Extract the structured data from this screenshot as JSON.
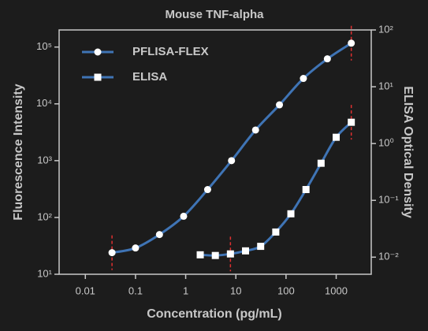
{
  "chart_data": {
    "type": "line",
    "title": "Mouse TNF-alpha",
    "x_label": "Concentration (pg/mL)",
    "y_label": "Fluorescence Intensity",
    "y2_label": "ELISA Optical Density",
    "log_x": true,
    "log_y": true,
    "log_y2": true,
    "xlim": [
      0.003,
      5000
    ],
    "xticks": [
      0.01,
      0.1,
      1,
      10,
      100,
      1000
    ],
    "ylim": [
      10,
      200000
    ],
    "yticks": [
      {
        "value": 10,
        "label": "10¹"
      },
      {
        "value": 100,
        "label": "10²"
      },
      {
        "value": 1000,
        "label": "10³"
      },
      {
        "value": 10000,
        "label": "10⁴"
      },
      {
        "value": 100000,
        "label": "10⁵"
      }
    ],
    "y2lim": [
      0.005,
      100
    ],
    "y2ticks": [
      {
        "value": 0.01,
        "label": "10⁻²"
      },
      {
        "value": 0.1,
        "label": "10⁻¹"
      },
      {
        "value": 1,
        "label": "10⁰"
      },
      {
        "value": 10,
        "label": "10¹"
      },
      {
        "value": 100,
        "label": "10²"
      }
    ],
    "legend": "upper left",
    "reference_x": [
      0.034,
      7.8,
      2000
    ],
    "reference_color": "#e03030",
    "series": [
      {
        "name": "PFLISA-FLEX",
        "color": "#3f74b5",
        "marker": "circle",
        "x": [
          0.034,
          0.1,
          0.3,
          0.91,
          2.74,
          8.2,
          24.7,
          74,
          222,
          667,
          2000
        ],
        "values": [
          24,
          29,
          50,
          105,
          310,
          1000,
          3460,
          9600,
          28000,
          62000,
          117000
        ]
      },
      {
        "name": "ELISA",
        "color": "#3f74b5",
        "marker": "square",
        "axis": "y2",
        "x": [
          1.95,
          3.9,
          7.8,
          15.6,
          31.25,
          62.5,
          125,
          250,
          500,
          1000,
          2000
        ],
        "values": [
          0.011,
          0.0107,
          0.0114,
          0.0129,
          0.0155,
          0.0277,
          0.058,
          0.155,
          0.45,
          1.29,
          2.37
        ]
      }
    ]
  }
}
